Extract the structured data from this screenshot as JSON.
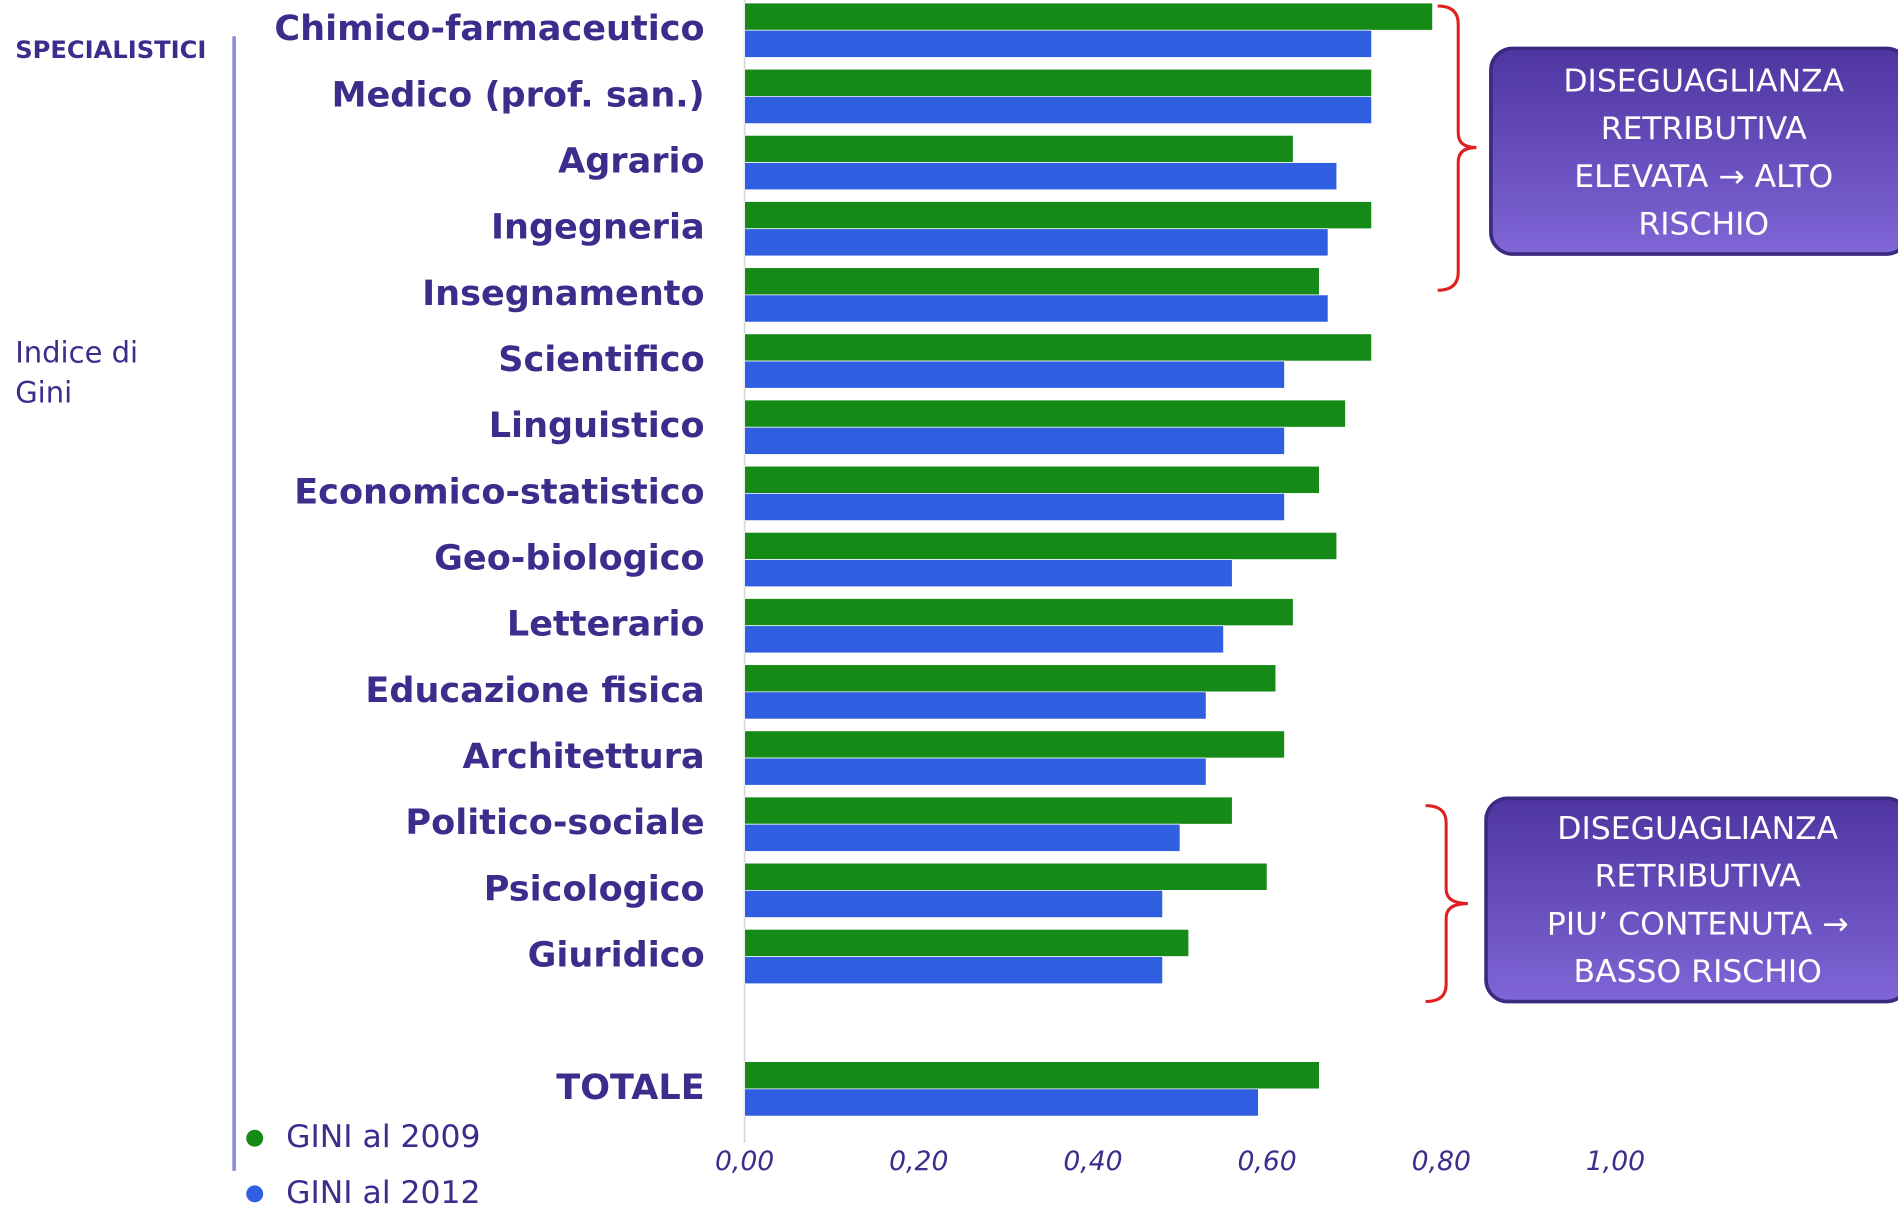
{
  "chart_data": {
    "type": "bar",
    "side_label": "SPECIALISTICI",
    "axis_title_lines": [
      "Indice di",
      "Gini"
    ],
    "categories": [
      "Chimico-farmaceutico",
      "Medico (prof. san.)",
      "Agrario",
      "Ingegneria",
      "Insegnamento",
      "Scientifico",
      "Linguistico",
      "Economico-statistico",
      "Geo-biologico",
      "Letterario",
      "Educazione fisica",
      "Architettura",
      "Politico-sociale",
      "Psicologico",
      "Giuridico",
      "TOTALE"
    ],
    "series": [
      {
        "name": "GINI al 2009",
        "color": "#168a16",
        "values": [
          0.79,
          0.72,
          0.63,
          0.72,
          0.66,
          0.72,
          0.69,
          0.66,
          0.68,
          0.63,
          0.61,
          0.62,
          0.56,
          0.6,
          0.51,
          0.66
        ]
      },
      {
        "name": "GINI al 2012",
        "color": "#2f5fe0",
        "values": [
          0.72,
          0.72,
          0.68,
          0.67,
          0.67,
          0.62,
          0.62,
          0.62,
          0.56,
          0.55,
          0.53,
          0.53,
          0.5,
          0.48,
          0.48,
          0.59
        ]
      }
    ],
    "xlim": [
      0,
      1
    ],
    "xticks": [
      {
        "value": 0,
        "label": "0,00"
      },
      {
        "value": 0.2,
        "label": "0,20"
      },
      {
        "value": 0.4,
        "label": "0,40"
      },
      {
        "value": 0.6,
        "label": "0,60"
      },
      {
        "value": 0.8,
        "label": "0,80"
      },
      {
        "value": 1,
        "label": "1,00"
      }
    ],
    "annotations": [
      {
        "lines": [
          "DISEGUAGLIANZA",
          "RETRIBUTIVA",
          "ELEVATA → ALTO",
          "RISCHIO"
        ]
      },
      {
        "lines": [
          "DISEGUAGLIANZA",
          "RETRIBUTIVA",
          "PIU’ CONTENUTA →",
          "BASSO RISCHIO"
        ]
      }
    ]
  }
}
